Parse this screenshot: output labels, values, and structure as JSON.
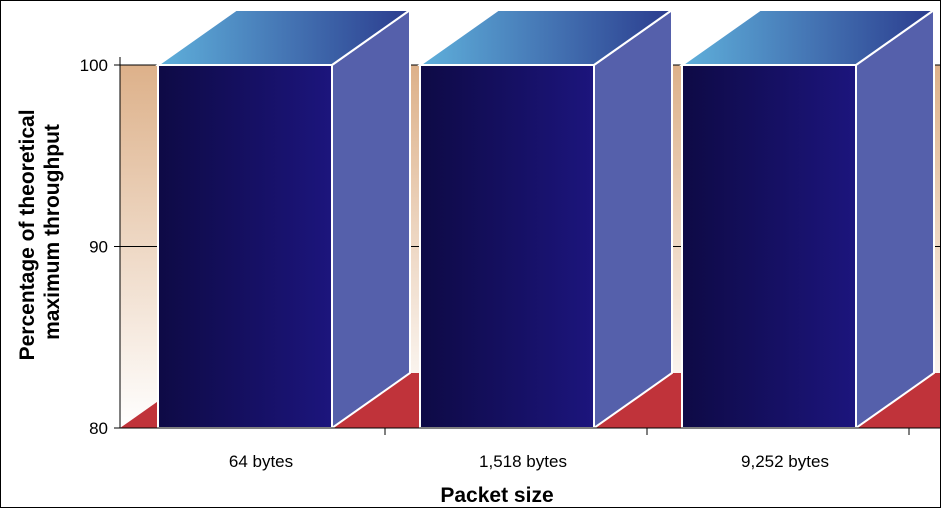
{
  "chart_data": {
    "type": "bar",
    "title": "",
    "xlabel": "Packet size",
    "ylabel": "Percentage of theoretical maximum throughput",
    "ylabel_lines": [
      "Percentage of theoretical",
      "maximum throughput"
    ],
    "categories": [
      "64 bytes",
      "1,518 bytes",
      "9,252 bytes"
    ],
    "values": [
      100,
      100,
      100
    ],
    "ylim": [
      80,
      100
    ],
    "yticks": [
      80,
      90,
      100
    ],
    "grid": true,
    "legend": "none",
    "style": "3d"
  },
  "colors": {
    "bar_front_dark": "#0e0a45",
    "bar_front_light": "#1c157d",
    "bar_side": "#5560ab",
    "bar_top_light": "#5fb0db",
    "bar_top_dark": "#2b3c8e",
    "floor": "#c0333a",
    "wall_top": "#ddb18a",
    "wall_bottom": "#ffffff",
    "axis": "#000000"
  }
}
